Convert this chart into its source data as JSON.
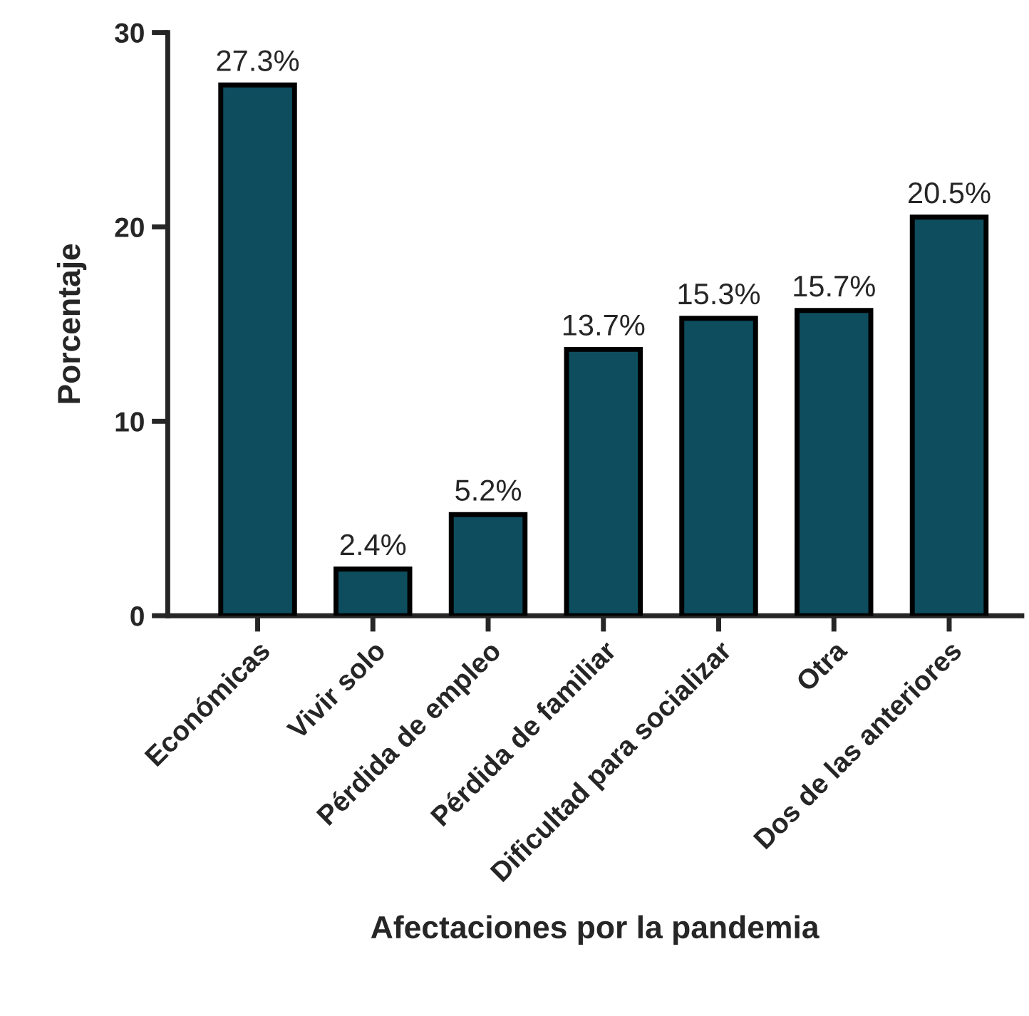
{
  "chart_data": {
    "type": "bar",
    "xlabel": "Afectaciones por la pandemia",
    "ylabel": "Porcentaje",
    "categories": [
      "Económicas",
      "Vivir solo",
      "Pérdida de empleo",
      "Pérdida de familiar",
      "Dificultad para socializar",
      "Otra",
      "Dos de las anteriores"
    ],
    "values": [
      27.3,
      2.4,
      5.2,
      13.7,
      15.3,
      15.7,
      20.5
    ],
    "value_labels": [
      "27.3%",
      "2.4%",
      "5.2%",
      "13.7%",
      "15.3%",
      "15.7%",
      "20.5%"
    ],
    "color": "#0d4d5e",
    "ylim": [
      0,
      30
    ],
    "yticks": [
      0,
      10,
      20,
      30
    ],
    "grid": false,
    "legend": false
  }
}
